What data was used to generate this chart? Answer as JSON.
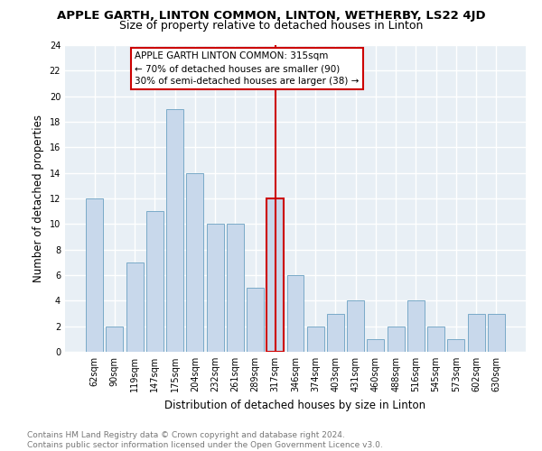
{
  "title": "APPLE GARTH, LINTON COMMON, LINTON, WETHERBY, LS22 4JD",
  "subtitle": "Size of property relative to detached houses in Linton",
  "xlabel": "Distribution of detached houses by size in Linton",
  "ylabel": "Number of detached properties",
  "categories": [
    "62sqm",
    "90sqm",
    "119sqm",
    "147sqm",
    "175sqm",
    "204sqm",
    "232sqm",
    "261sqm",
    "289sqm",
    "317sqm",
    "346sqm",
    "374sqm",
    "403sqm",
    "431sqm",
    "460sqm",
    "488sqm",
    "516sqm",
    "545sqm",
    "573sqm",
    "602sqm",
    "630sqm"
  ],
  "values": [
    12,
    2,
    7,
    11,
    19,
    14,
    10,
    10,
    5,
    12,
    6,
    2,
    3,
    4,
    1,
    2,
    4,
    2,
    1,
    3,
    3
  ],
  "bar_color": "#c8d8eb",
  "bar_edge_color": "#7aaac8",
  "highlight_index": 9,
  "highlight_edge_color": "#cc0000",
  "vline_color": "#cc0000",
  "annotation_text": "APPLE GARTH LINTON COMMON: 315sqm\n← 70% of detached houses are smaller (90)\n30% of semi-detached houses are larger (38) →",
  "annotation_box_color": "#ffffff",
  "annotation_box_edge_color": "#cc0000",
  "ylim": [
    0,
    24
  ],
  "yticks": [
    0,
    2,
    4,
    6,
    8,
    10,
    12,
    14,
    16,
    18,
    20,
    22,
    24
  ],
  "footer_line1": "Contains HM Land Registry data © Crown copyright and database right 2024.",
  "footer_line2": "Contains public sector information licensed under the Open Government Licence v3.0.",
  "plot_bg_color": "#e8eff5",
  "fig_bg_color": "#ffffff",
  "grid_color": "#ffffff",
  "title_fontsize": 9.5,
  "subtitle_fontsize": 9,
  "axis_label_fontsize": 8.5,
  "tick_fontsize": 7,
  "annotation_fontsize": 7.5,
  "footer_fontsize": 6.5
}
